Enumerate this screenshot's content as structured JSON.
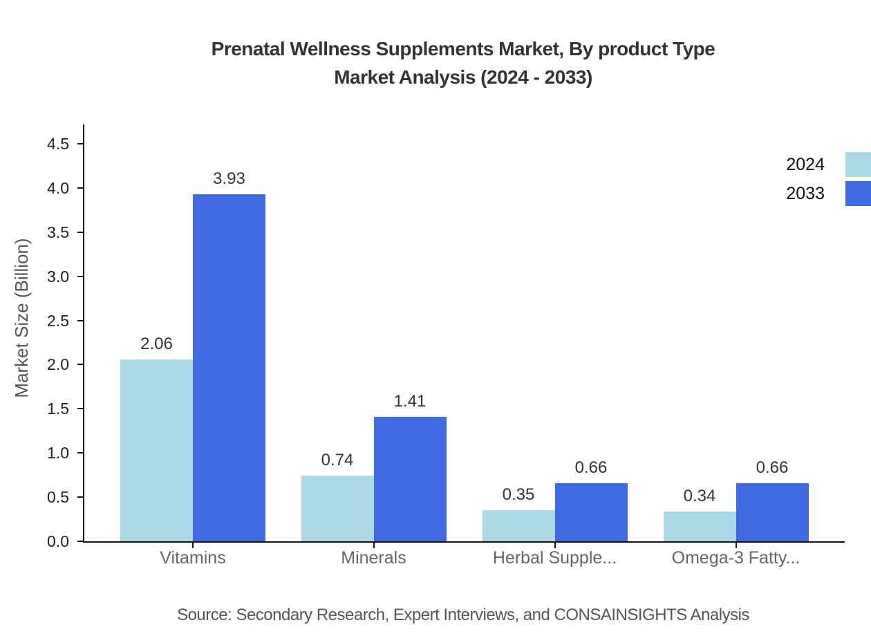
{
  "chart_data": {
    "type": "bar",
    "title_line1": "Prenatal Wellness Supplements Market, By product Type",
    "title_line2": "Market Analysis (2024 - 2033)",
    "categories": [
      "Vitamins",
      "Minerals",
      "Herbal Supple...",
      "Omega-3 Fatty..."
    ],
    "series": [
      {
        "name": "2024",
        "color": "#ADD8E6",
        "values": [
          2.06,
          0.74,
          0.35,
          0.34
        ]
      },
      {
        "name": "2033",
        "color": "#4169E1",
        "values": [
          3.93,
          1.41,
          0.66,
          0.66
        ]
      }
    ],
    "xlabel": "",
    "ylabel": "Market Size (Billion)",
    "ylim": [
      0,
      4.5
    ],
    "yticks": [
      0.0,
      0.5,
      1.0,
      1.5,
      2.0,
      2.5,
      3.0,
      3.5,
      4.0,
      4.5
    ],
    "grid": false,
    "legend_position": "top-right",
    "value_labels_decimals": 2,
    "source": "Source: Secondary Research, Expert Interviews, and CONSAINSIGHTS Analysis"
  }
}
